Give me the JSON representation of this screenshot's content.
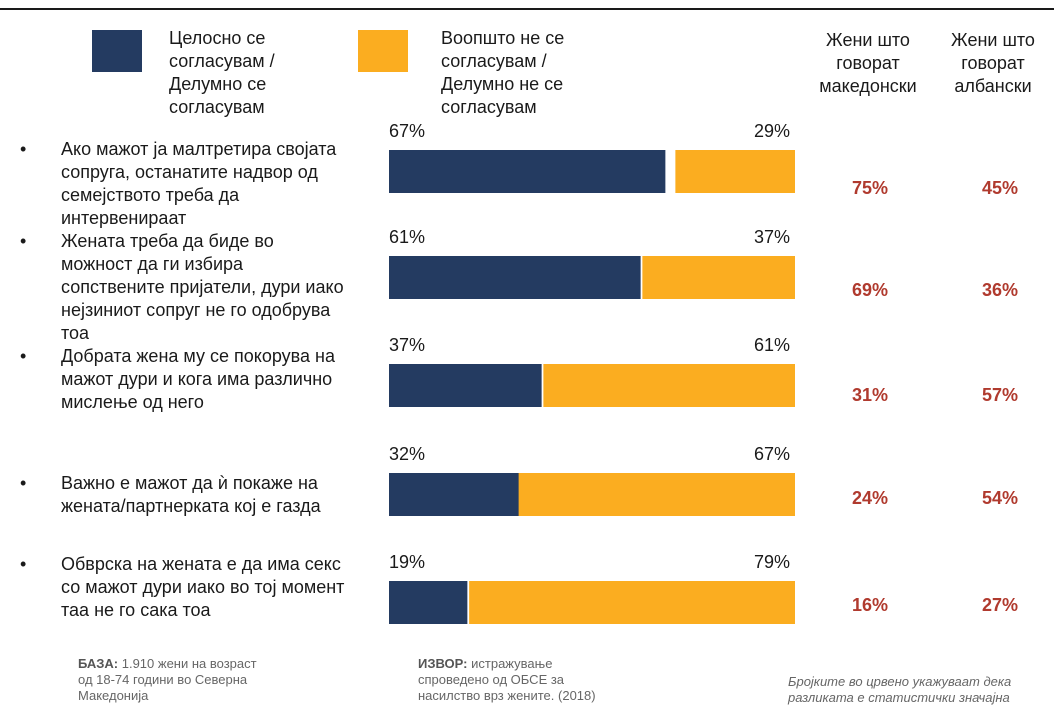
{
  "legend": {
    "agree_label": "Целосно се согласувам / Делумно се согласувам",
    "agree_color": "#243b61",
    "disagree_label": "Воопшто не се согласувам / Делумно не се согласувам",
    "disagree_color": "#fbad20"
  },
  "columns": {
    "macedonian": "Жени што говорат македонски",
    "albanian": "Жени што говорат албански"
  },
  "chart_data": {
    "type": "bar",
    "orientation": "horizontal-stacked",
    "categories": [
      "Ако мажот ја малтретира својата сопруга,  останатите надвор од семејството треба да интервенираат",
      "Жената треба да биде во можност да ги избира сопствените пријатели, дури иако нејзиниот сопруг не го одобрува тоа",
      "Добрата жена му се покорува на мажот дури и кога има различно мислење од него",
      "Важно е мажот да ѝ покаже на жената/партнерката кој е газда",
      "Обврска на жената е да има секс со мажот дури иако во тој момент таа не го сака тоа"
    ],
    "series": [
      {
        "name": "Целосно се согласувам / Делумно се согласувам",
        "values": [
          67,
          61,
          37,
          32,
          19
        ],
        "labels": [
          "67%",
          "61%",
          "37%",
          "32%",
          "19%"
        ],
        "color": "#243b61"
      },
      {
        "name": "Воопшто не се согласувам / Делумно не се согласувам",
        "values": [
          29,
          37,
          61,
          67,
          79
        ],
        "labels": [
          "29%",
          "37%",
          "61%",
          "67%",
          "79%"
        ],
        "color": "#fbad20"
      }
    ],
    "macedonian": [
      "75%",
      "69%",
      "31%",
      "24%",
      "16%"
    ],
    "albanian": [
      "45%",
      "36%",
      "57%",
      "54%",
      "27%"
    ],
    "xlim": [
      0,
      100
    ]
  },
  "footer": {
    "base_label": "БАЗА:",
    "base_text": "1.910 жени на возраст од 18-74 години во Северна Македонија",
    "source_label": "ИЗВОР:",
    "source_text": "истражување спроведено од ОБСЕ за насилство врз жените. (2018)",
    "note": "Бројките во црвено укажуваат дека разликата е статистички значајна"
  }
}
